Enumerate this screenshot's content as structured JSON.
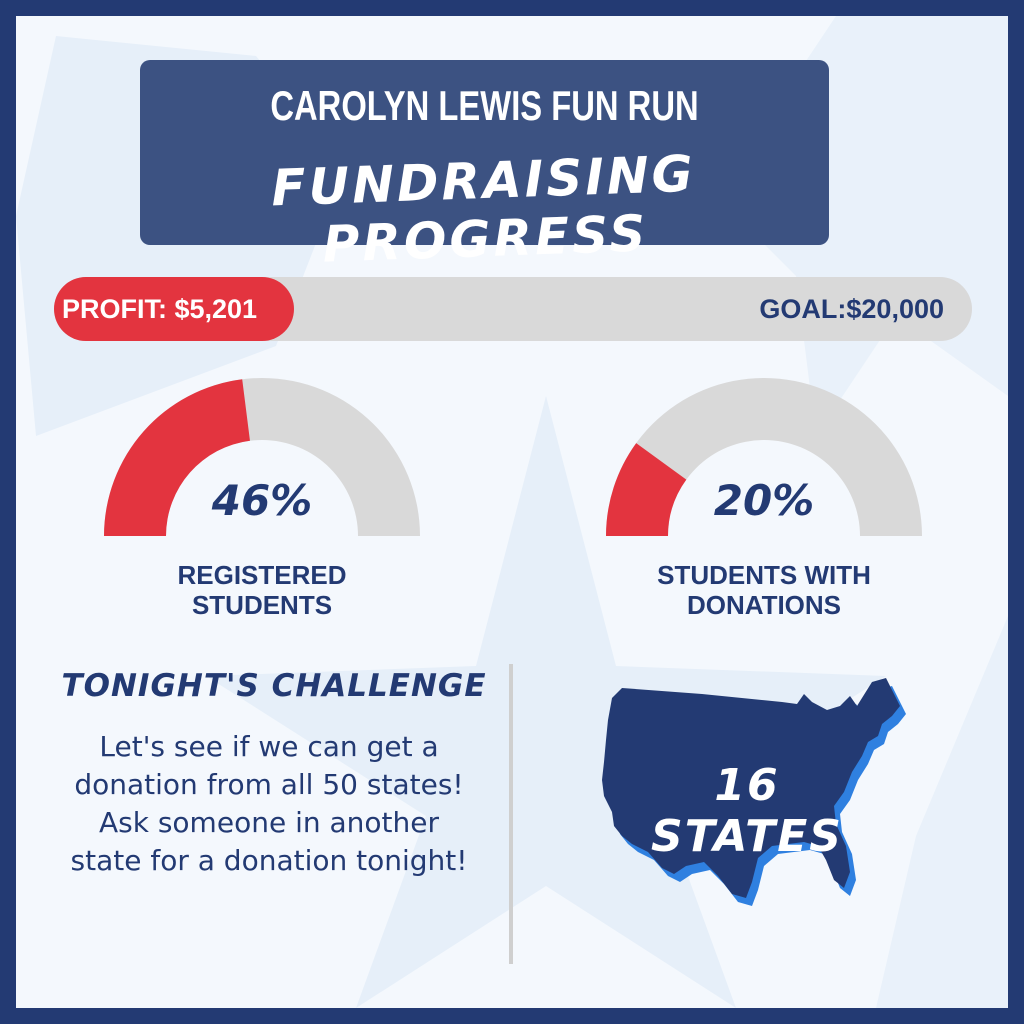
{
  "header": {
    "title": "CAROLYN LEWIS FUN RUN",
    "subtitle": "FUNDRAISING PROGRESS"
  },
  "progress": {
    "profit_label": "PROFIT: $5,201",
    "goal_label": "GOAL:$20,000",
    "profit": 5201,
    "goal": 20000
  },
  "gauges": [
    {
      "value_label": "46%",
      "fraction": 0.46,
      "caption_line1": "REGISTERED",
      "caption_line2": "STUDENTS"
    },
    {
      "value_label": "20%",
      "fraction": 0.2,
      "caption_line1": "STUDENTS WITH",
      "caption_line2": "DONATIONS"
    }
  ],
  "challenge": {
    "title": "TONIGHT'S CHALLENGE",
    "text": "Let's see if we can get a donation from all 50 states! Ask someone in another state for a donation tonight!"
  },
  "states": {
    "label": "16 STATES",
    "count": 16
  },
  "colors": {
    "navy": "#233a73",
    "header_bg": "#3c5282",
    "red": "#e3343f",
    "track_gray": "#d9d9d9",
    "map_shadow": "#2f80e0",
    "background": "#f4f8fd",
    "star": "#e6eff9"
  }
}
